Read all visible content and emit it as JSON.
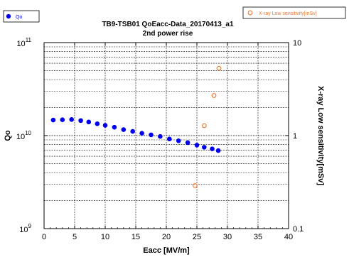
{
  "chart_data": {
    "type": "scatter",
    "title": "TB9-TSB01 QoEacc-Data_20170413_a1",
    "subtitle": "2nd power rise",
    "xlabel": "Eacc [MV/m]",
    "ylabel": "Qo",
    "y2label": "X-ray Low sensitivity[mSv]",
    "xlim": [
      0,
      40
    ],
    "ylim": [
      1000000000.0,
      100000000000.0
    ],
    "y2lim": [
      0.1,
      10
    ],
    "yscale": "log",
    "y2scale": "log",
    "grid": true,
    "x_ticks": [
      "0",
      "5",
      "10",
      "15",
      "20",
      "25",
      "30",
      "35",
      "40"
    ],
    "y_ticks": [
      {
        "base": "10",
        "exp": "9",
        "value": 1000000000.0
      },
      {
        "base": "10",
        "exp": "10",
        "value": 10000000000.0
      },
      {
        "base": "10",
        "exp": "11",
        "value": 100000000000.0
      }
    ],
    "y2_ticks": [
      {
        "label": "0.1",
        "value": 0.1
      },
      {
        "label": "1",
        "value": 1
      },
      {
        "label": "10",
        "value": 10
      }
    ],
    "series": [
      {
        "name": "Qo",
        "axis": "left",
        "marker": "filled-circle",
        "color": "#0000ee",
        "legend_position": "top-left",
        "x": [
          1.5,
          3.0,
          4.5,
          6.0,
          7.3,
          8.7,
          10.0,
          11.5,
          13.0,
          14.5,
          16.0,
          17.5,
          19.0,
          20.5,
          22.0,
          23.5,
          25.0,
          26.2,
          27.5,
          28.5
        ],
        "y": [
          14700000000.0,
          14800000000.0,
          14900000000.0,
          14500000000.0,
          14000000000.0,
          13400000000.0,
          12900000000.0,
          12300000000.0,
          11600000000.0,
          11100000000.0,
          10600000000.0,
          10200000000.0,
          9800000000.0,
          9200000000.0,
          8800000000.0,
          8400000000.0,
          7900000000.0,
          7500000000.0,
          7200000000.0,
          6900000000.0
        ]
      },
      {
        "name": "X-ray Low sensitivity[mSv]",
        "axis": "right",
        "marker": "open-circle",
        "color": "#e8742a",
        "legend_position": "top-right",
        "x": [
          24.7,
          26.2,
          27.8,
          28.6
        ],
        "y": [
          0.29,
          1.28,
          2.7,
          5.3
        ]
      }
    ]
  }
}
